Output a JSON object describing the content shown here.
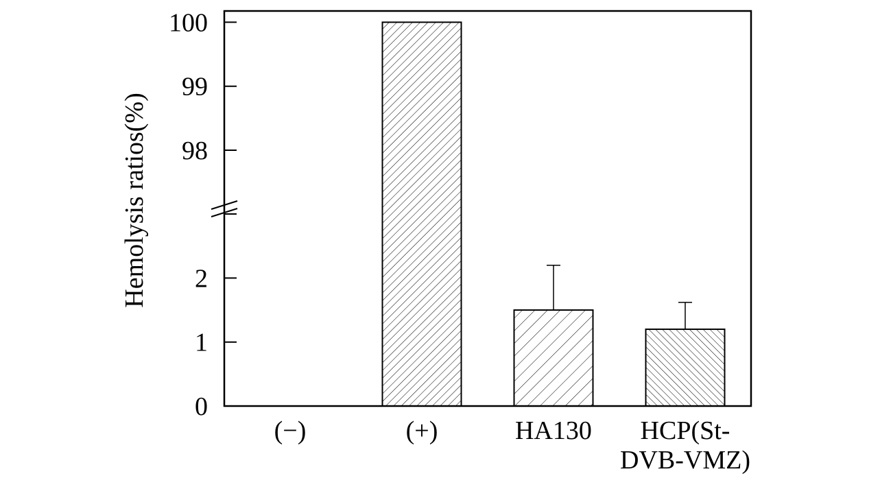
{
  "chart_data": {
    "type": "bar",
    "ylabel": "Hemolysis ratios(%)",
    "xlabel": "",
    "categories": [
      [
        "(−)"
      ],
      [
        "(+)"
      ],
      [
        "HA130"
      ],
      [
        "HCP(St-",
        "DVB-VMZ)"
      ]
    ],
    "values": [
      0,
      100,
      1.5,
      1.2
    ],
    "error_upper": [
      null,
      null,
      0.7,
      0.42
    ],
    "bar_patterns": [
      "none",
      "hatch-fine-forward",
      "hatch-coarse-forward",
      "hatch-back"
    ],
    "y_axis_broken": true,
    "y_segments": {
      "lower": {
        "range": [
          0,
          3
        ],
        "ticks": [
          0,
          1,
          2
        ]
      },
      "upper": {
        "range": [
          97,
          100.15
        ],
        "ticks": [
          98,
          99,
          100
        ]
      }
    },
    "ytick_labels": [
      "0",
      "1",
      "2",
      "98",
      "99",
      "100"
    ],
    "grid": false,
    "legend": "none",
    "colors": {
      "bar_fill": "#ffffff",
      "stroke": "#000000",
      "hatch": "#000000"
    }
  }
}
